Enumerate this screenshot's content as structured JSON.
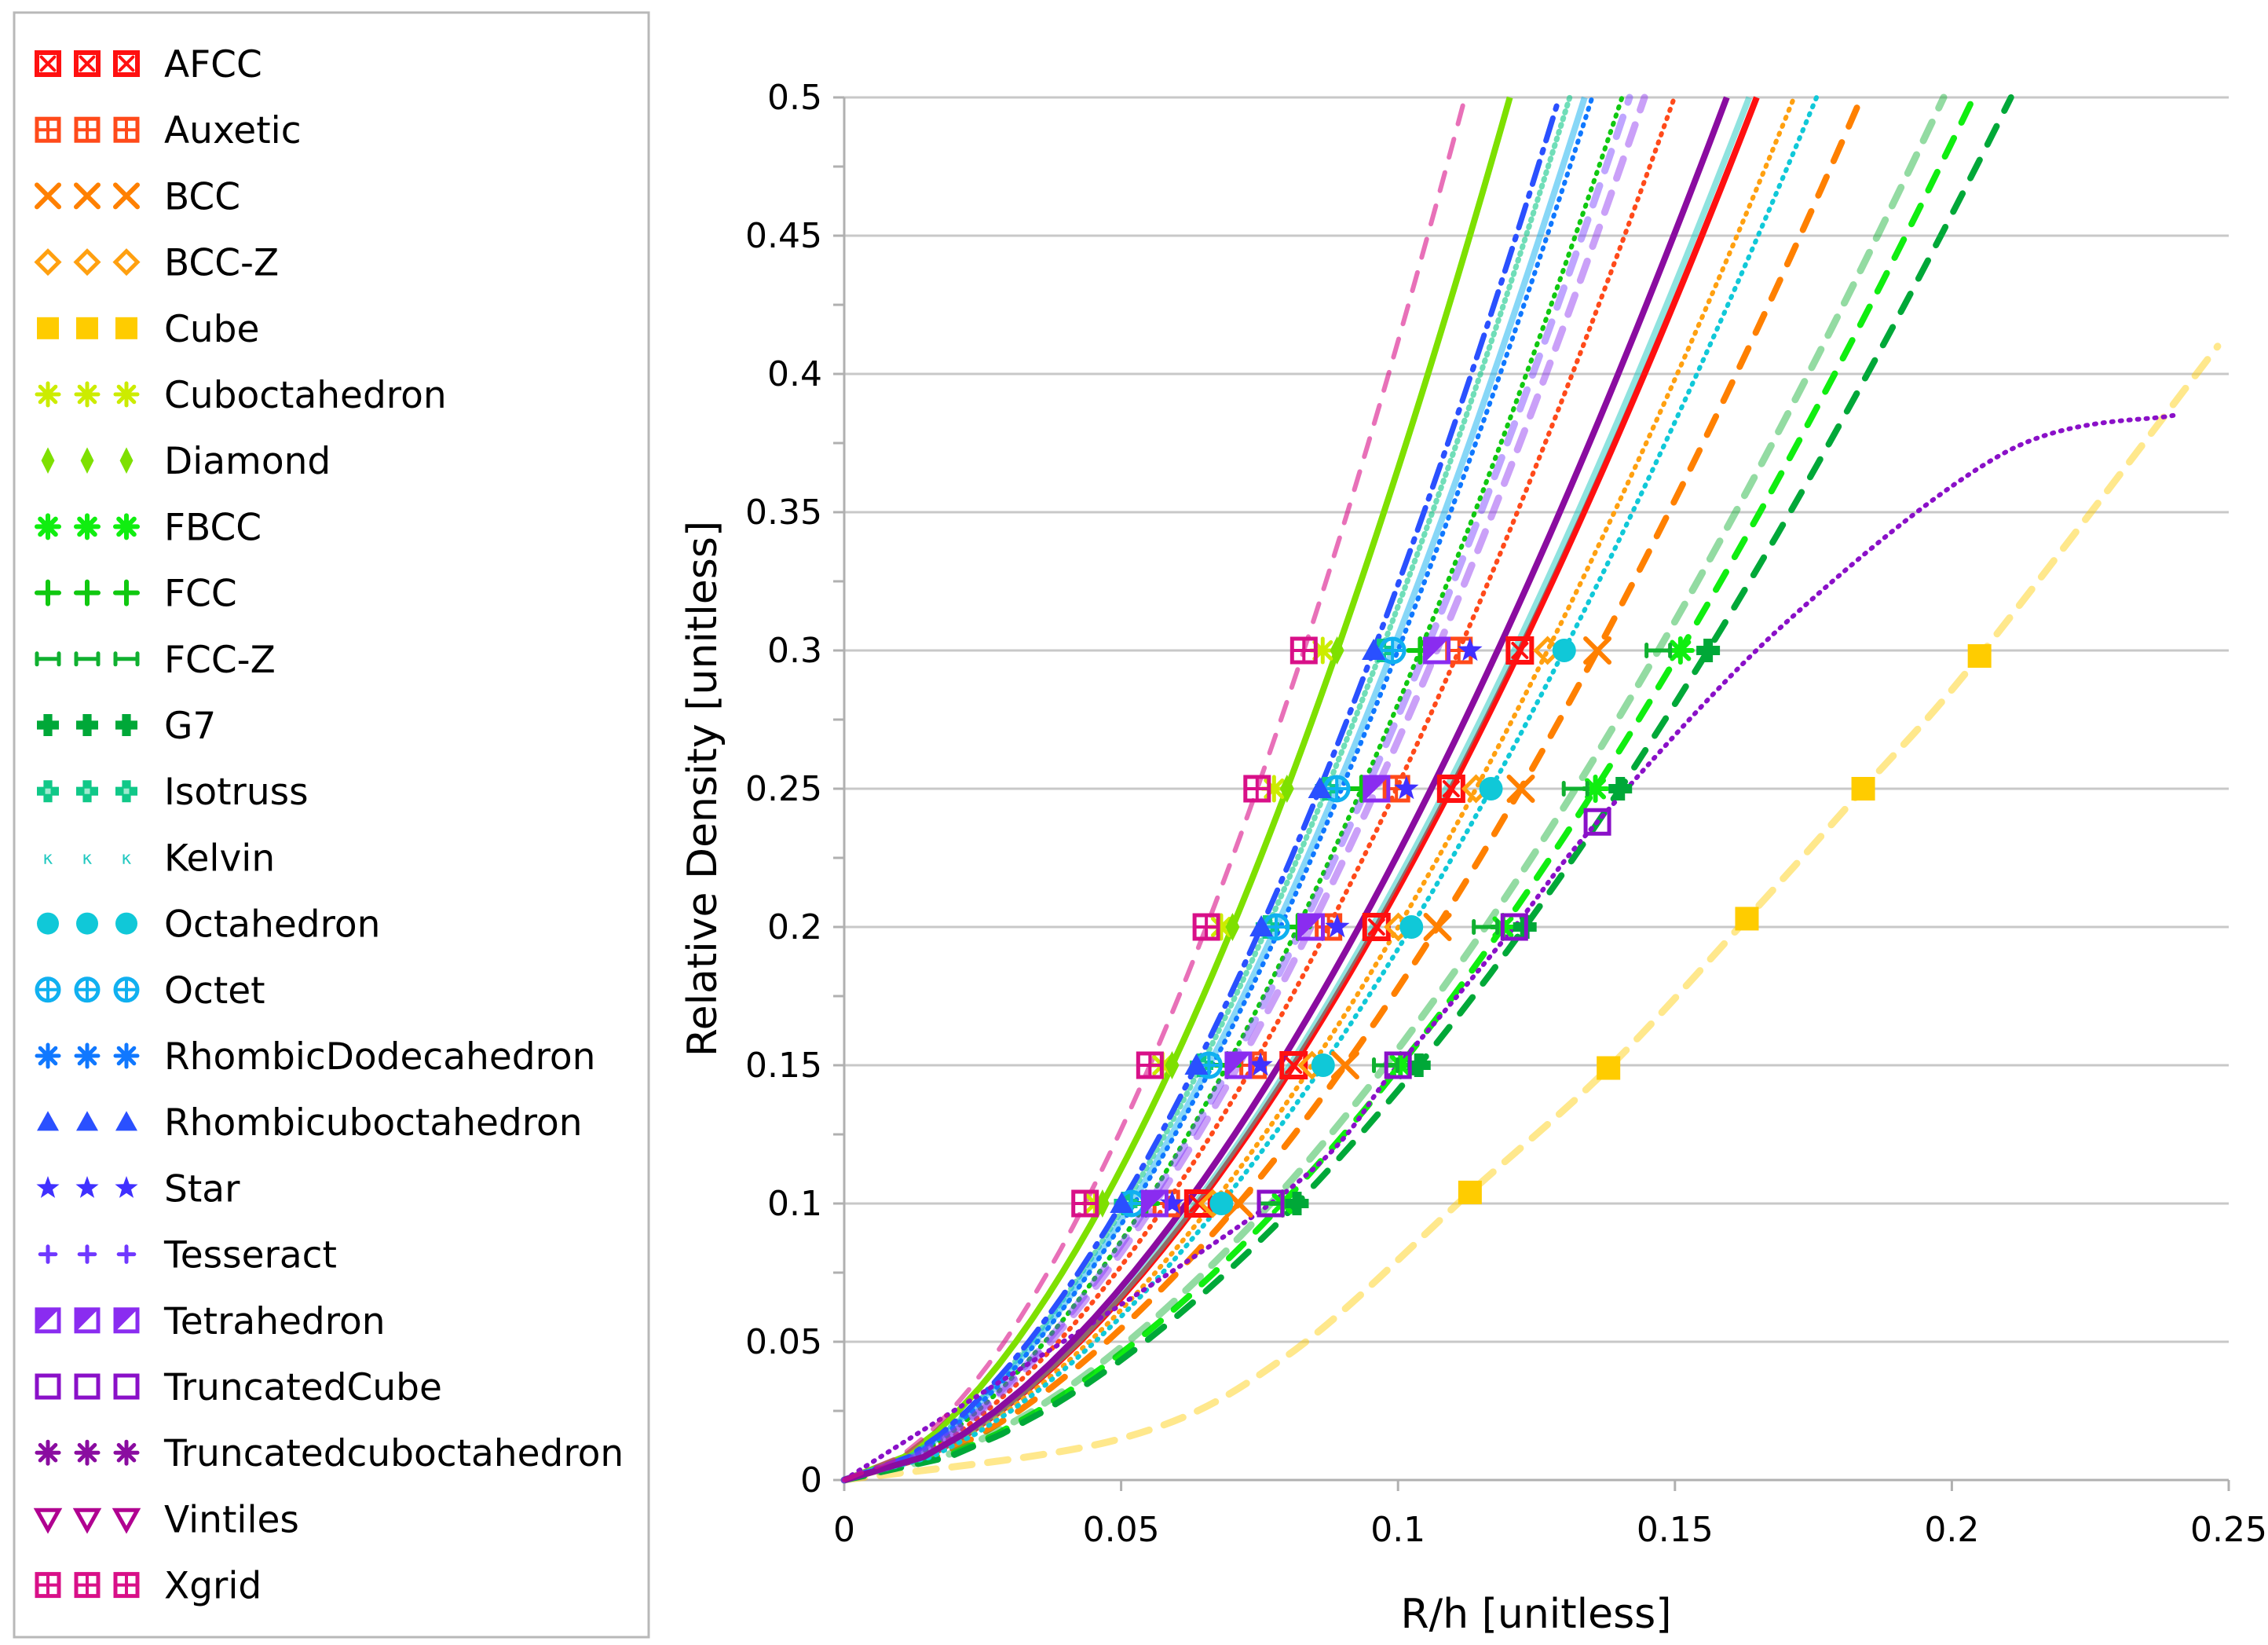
{
  "chart_data": {
    "type": "line",
    "xlabel": "R/h [unitless]",
    "ylabel": "Relative Density [unitless]",
    "xlim": [
      0,
      0.25
    ],
    "ylim": [
      0,
      0.5
    ],
    "x_ticks": [
      "0",
      "0.05",
      "0.1",
      "0.15",
      "0.2",
      "0.25"
    ],
    "y_ticks": [
      "0",
      "0.05",
      "0.1",
      "0.15",
      "0.2",
      "0.25",
      "0.3",
      "0.35",
      "0.4",
      "0.45",
      "0.5"
    ],
    "grid": "horizontal",
    "legend_position": "left",
    "marker_levels": [
      0.1,
      0.15,
      0.2,
      0.25,
      0.3
    ],
    "curve_model": "relative_density = 0.3 * (x / x_at_0.3)^exponent",
    "exponent": 1.7,
    "series": [
      {
        "name": "AFCC",
        "color": "#ff1010",
        "marker": "box-x",
        "line": "solid",
        "x_at_0.3": 0.122
      },
      {
        "name": "Auxetic",
        "color": "#ff4a1a",
        "marker": "box-grid",
        "line": "dotted",
        "x_at_0.3": 0.111
      },
      {
        "name": "BCC",
        "color": "#ff8000",
        "marker": "x",
        "line": "dashed",
        "x_at_0.3": 0.136
      },
      {
        "name": "BCC-Z",
        "color": "#ffa010",
        "marker": "diamond-open",
        "line": "dotted",
        "x_at_0.3": 0.127
      },
      {
        "name": "Cube",
        "color": "#ffcc00",
        "marker": "square",
        "line": "dashed-light",
        "points": [
          [
            0.113,
            0.104
          ],
          [
            0.138,
            0.149
          ],
          [
            0.163,
            0.203
          ],
          [
            0.184,
            0.25
          ],
          [
            0.205,
            0.298
          ],
          [
            0.248,
            0.41
          ]
        ]
      },
      {
        "name": "Cuboctahedron",
        "color": "#ccec00",
        "marker": "asterisk",
        "line": "none",
        "x_at_0.3": 0.0864
      },
      {
        "name": "Diamond",
        "color": "#7ee000",
        "marker": "diamond",
        "line": "solid",
        "x_at_0.3": 0.089
      },
      {
        "name": "FBCC",
        "color": "#10ee10",
        "marker": "asterisk-bold",
        "line": "dashed",
        "x_at_0.3": 0.151
      },
      {
        "name": "FCC",
        "color": "#10c810",
        "marker": "plus",
        "line": "dotted",
        "x_at_0.3": 0.104
      },
      {
        "name": "FCC-Z",
        "color": "#10b030",
        "marker": "h-bar",
        "line": "dashed-light",
        "x_at_0.3": 0.147
      },
      {
        "name": "G7",
        "color": "#00a838",
        "marker": "cross-thick",
        "line": "dashed",
        "x_at_0.3": 0.156
      },
      {
        "name": "Isotruss",
        "color": "#10c888",
        "marker": "cross",
        "line": "dotted-light",
        "x_at_0.3": 0.097
      },
      {
        "name": "Kelvin",
        "color": "#20c8c0",
        "marker": "kappa",
        "line": "solid-light",
        "x_at_0.3": 0.121
      },
      {
        "name": "Octahedron",
        "color": "#10c8d8",
        "marker": "circle",
        "line": "dotted",
        "x_at_0.3": 0.13
      },
      {
        "name": "Octet",
        "color": "#10b0f0",
        "marker": "circle-plus",
        "line": "solid-light",
        "x_at_0.3": 0.099
      },
      {
        "name": "RhombicDodecahedron",
        "color": "#1078ff",
        "marker": "asterisk",
        "line": "dotted",
        "x_at_0.3": 0.1
      },
      {
        "name": "Rhombicuboctahedron",
        "color": "#2a50ff",
        "marker": "triangle",
        "line": "dash-dot",
        "x_at_0.3": 0.0956
      },
      {
        "name": "Star",
        "color": "#4030ff",
        "marker": "star",
        "line": "none",
        "x_at_0.3": 0.113
      },
      {
        "name": "Tesseract",
        "color": "#7038ff",
        "marker": "plus-small",
        "line": "dashed-light",
        "x_at_0.3": 0.105
      },
      {
        "name": "Tetrahedron",
        "color": "#8a2cf0",
        "marker": "square-half",
        "line": "dashed-light",
        "x_at_0.3": 0.107
      },
      {
        "name": "TruncatedCube",
        "color": "#8a10c8",
        "marker": "square-open",
        "line": "dotted",
        "points": [
          [
            0.077,
            0.1
          ],
          [
            0.1,
            0.15
          ],
          [
            0.121,
            0.2
          ],
          [
            0.136,
            0.238
          ],
          [
            0.17,
            0.31
          ],
          [
            0.21,
            0.372
          ],
          [
            0.24,
            0.385
          ]
        ]
      },
      {
        "name": "Truncatedcuboctahedron",
        "color": "#8a0ca0",
        "marker": "asterisk",
        "line": "solid",
        "x_at_0.3": 0.118
      },
      {
        "name": "Vintiles",
        "color": "#b00090",
        "marker": "triangle-down",
        "line": "none",
        "x_at_0.3": 0.11
      },
      {
        "name": "Xgrid",
        "color": "#d81088",
        "marker": "box-grid",
        "line": "dashed-pink",
        "x_at_0.3": 0.083
      }
    ]
  }
}
